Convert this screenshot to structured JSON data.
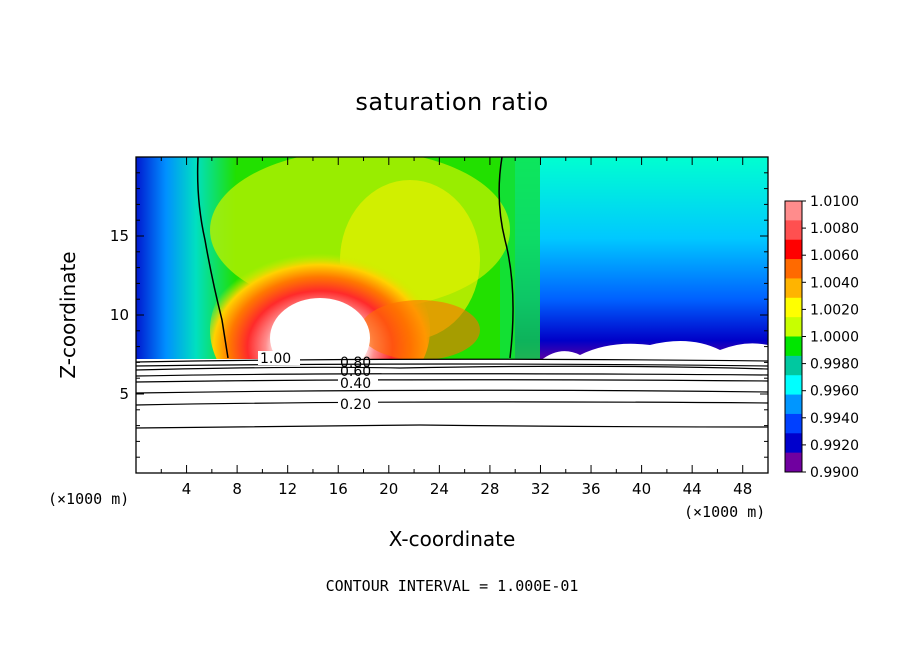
{
  "chart_data": {
    "type": "heatmap",
    "title": "saturation ratio",
    "xlabel": "X-coordinate",
    "ylabel": "Z-coordinate",
    "x_units": "(×1000 m)",
    "x_units_right": "(×1000 m)",
    "xlim": [
      0,
      50
    ],
    "ylim": [
      0,
      20
    ],
    "x_ticks": [
      "4",
      "8",
      "12",
      "16",
      "20",
      "24",
      "28",
      "32",
      "36",
      "40",
      "44",
      "48"
    ],
    "y_ticks": [
      "5",
      "10",
      "15"
    ],
    "footer": "CONTOUR INTERVAL = 1.000E-01",
    "colorbar": {
      "levels": [
        "1.0100",
        "1.0080",
        "1.0060",
        "1.0040",
        "1.0020",
        "1.0000",
        "0.9980",
        "0.9960",
        "0.9940",
        "0.9920",
        "0.9900"
      ],
      "colors": [
        "#ff8c8c",
        "#ff5050",
        "#ff0000",
        "#ff6a00",
        "#ffb400",
        "#ffff00",
        "#c8ff00",
        "#00e600",
        "#00c8a0",
        "#00ffff",
        "#0096ff",
        "#0040ff",
        "#0000cc",
        "#7000a0"
      ]
    },
    "contour_labels": [
      "1.00",
      "0.80",
      "0.60",
      "0.40",
      "0.20"
    ],
    "fill_description": "saturation ratio field above about z=7.3 km; 1.00 contour near x=5-7 and x=29-30"
  }
}
